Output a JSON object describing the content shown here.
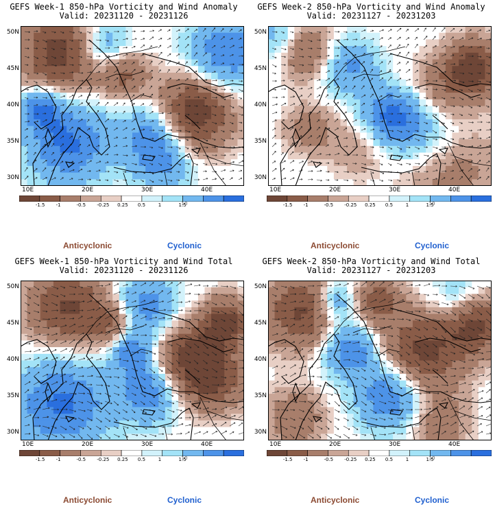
{
  "panels": [
    {
      "title": "GEFS Week-1 850-hPa Vorticity and Wind Anomaly",
      "valid": "Valid: 20231120 - 20231126",
      "pattern": 0
    },
    {
      "title": "GEFS Week-2 850-hPa Vorticity and Wind Anomaly",
      "valid": "Valid: 20231127 - 20231203",
      "pattern": 1
    },
    {
      "title": "GEFS Week-1 850-hPa Vorticity and Wind Total",
      "valid": "Valid: 20231120 - 20231126",
      "pattern": 2
    },
    {
      "title": "GEFS Week-2 850-hPa Vorticity and Wind Total",
      "valid": "Valid: 20231127 - 20231203",
      "pattern": 3
    }
  ],
  "lat_labels": [
    "50N",
    "45N",
    "40N",
    "35N",
    "30N"
  ],
  "lon_labels": [
    "10E",
    "20E",
    "30E",
    "40E"
  ],
  "colorbar": {
    "labels": [
      "-1.5",
      "-1",
      "-0.5",
      "-0.25",
      "0.25",
      "0.5",
      "1",
      "1.5"
    ],
    "scale_note": "10",
    "colors": [
      "#6e4637",
      "#8a5c48",
      "#a87e6b",
      "#c9a596",
      "#e8cfc5",
      "#ffffff",
      "#d2f2fb",
      "#a3e3f7",
      "#72b8ef",
      "#4d93e8",
      "#2a6fde"
    ]
  },
  "legend": {
    "anticyclonic": "Anticyclonic",
    "cyclonic": "Cyclonic",
    "anticyclonic_color": "#8b4a32",
    "cyclonic_color": "#1f5fcf"
  }
}
